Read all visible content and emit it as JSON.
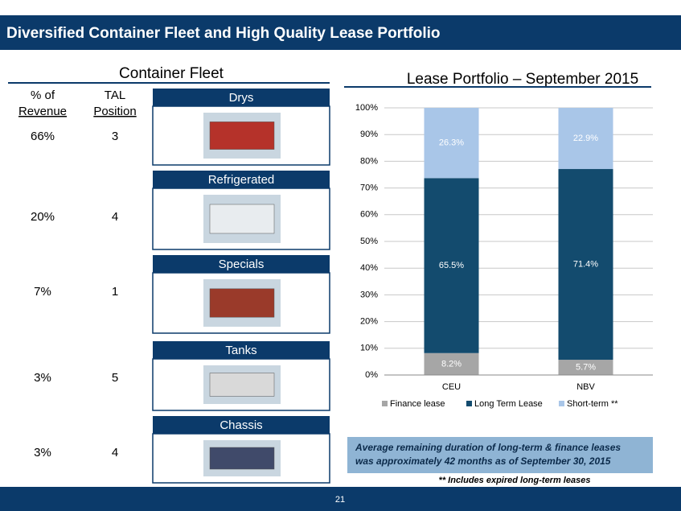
{
  "header": {
    "title": "Diversified Container Fleet and High Quality Lease Portfolio"
  },
  "fleet": {
    "title": "Container Fleet",
    "headers": [
      {
        "line1": "% of",
        "line2": "Revenue"
      },
      {
        "line1": "TAL",
        "line2": "Position"
      }
    ],
    "rows": [
      {
        "name": "Drys",
        "revenue": "66%",
        "position": "3"
      },
      {
        "name": "Refrigerated",
        "revenue": "20%",
        "position": "4"
      },
      {
        "name": "Specials",
        "revenue": "7%",
        "position": "1"
      },
      {
        "name": "Tanks",
        "revenue": "3%",
        "position": "5"
      },
      {
        "name": "Chassis",
        "revenue": "3%",
        "position": "4"
      }
    ]
  },
  "chart_data": {
    "type": "stacked_bar",
    "title": "Lease Portfolio – September 2015",
    "categories": [
      "CEU",
      "NBV"
    ],
    "series": [
      {
        "name": "Finance lease",
        "color": "#a6a6a6",
        "values": [
          8.2,
          5.7
        ],
        "value_labels": [
          "8.2%",
          "5.7%"
        ]
      },
      {
        "name": "Long Term Lease",
        "color": "#134b6e",
        "values": [
          65.5,
          71.4
        ],
        "value_labels": [
          "65.5%",
          "71.4%"
        ]
      },
      {
        "name": "Short-term **",
        "color": "#a9c6e8",
        "values": [
          26.3,
          22.9
        ],
        "value_labels": [
          "26.3%",
          "22.9%"
        ]
      }
    ],
    "ylim": [
      0,
      100
    ],
    "yticks": [
      {
        "value": 0,
        "label": "0%"
      },
      {
        "value": 10,
        "label": "10%"
      },
      {
        "value": 20,
        "label": "20%"
      },
      {
        "value": 30,
        "label": "30%"
      },
      {
        "value": 40,
        "label": "40%"
      },
      {
        "value": 50,
        "label": "50%"
      },
      {
        "value": 60,
        "label": "60%"
      },
      {
        "value": 70,
        "label": "70%"
      },
      {
        "value": 80,
        "label": "80%"
      },
      {
        "value": 90,
        "label": "90%"
      },
      {
        "value": 100,
        "label": "100%"
      }
    ],
    "grid": true,
    "legend": "bottom"
  },
  "note": {
    "lines": [
      "Average remaining duration of long-term & finance leases",
      "was approximately 42 months as of September 30, 2015"
    ]
  },
  "footnote": "** Includes expired long-term leases",
  "page_number": "21"
}
